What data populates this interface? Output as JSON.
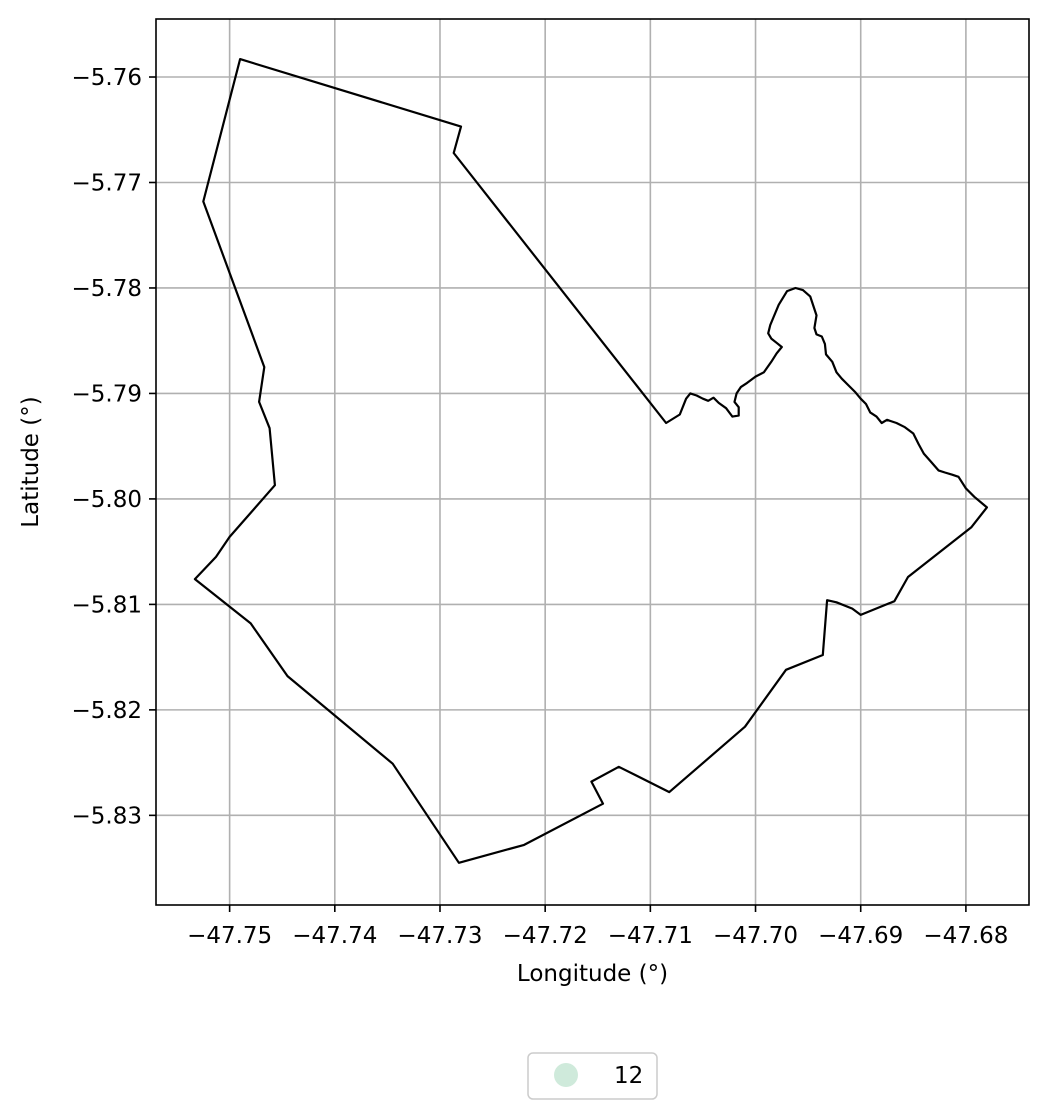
{
  "chart_data": {
    "type": "map",
    "title": "",
    "xlabel": "Longitude (°)",
    "ylabel": "Latitude (°)",
    "xlim": [
      -47.757,
      -47.674
    ],
    "ylim": [
      -5.8385,
      -5.7545
    ],
    "grid": true,
    "x_ticks": [
      -47.75,
      -47.74,
      -47.73,
      -47.72,
      -47.71,
      -47.7,
      -47.69,
      -47.68
    ],
    "x_tick_labels": [
      "−47.75",
      "−47.74",
      "−47.73",
      "−47.72",
      "−47.71",
      "−47.70",
      "−47.69",
      "−47.68"
    ],
    "y_ticks": [
      -5.76,
      -5.77,
      -5.78,
      -5.79,
      -5.8,
      -5.81,
      -5.82,
      -5.83
    ],
    "y_tick_labels": [
      "−5.76",
      "−5.77",
      "−5.78",
      "−5.79",
      "−5.80",
      "−5.81",
      "−5.82",
      "−5.83"
    ],
    "boundary": {
      "stroke_color": "#000000",
      "fill_color": "none",
      "coordinates": [
        [
          -47.749,
          -5.7583
        ],
        [
          -47.728,
          -5.7647
        ],
        [
          -47.7287,
          -5.7672
        ],
        [
          -47.7085,
          -5.7928
        ],
        [
          -47.7072,
          -5.792
        ],
        [
          -47.7066,
          -5.7905
        ],
        [
          -47.7062,
          -5.79
        ],
        [
          -47.7056,
          -5.7902
        ],
        [
          -47.705,
          -5.7905
        ],
        [
          -47.7045,
          -5.7907
        ],
        [
          -47.704,
          -5.7904
        ],
        [
          -47.7035,
          -5.7909
        ],
        [
          -47.7028,
          -5.7914
        ],
        [
          -47.7022,
          -5.7922
        ],
        [
          -47.7016,
          -5.7921
        ],
        [
          -47.7016,
          -5.7913
        ],
        [
          -47.702,
          -5.7908
        ],
        [
          -47.7018,
          -5.79
        ],
        [
          -47.7014,
          -5.7894
        ],
        [
          -47.7008,
          -5.789
        ],
        [
          -47.7,
          -5.7884
        ],
        [
          -47.6992,
          -5.788
        ],
        [
          -47.6985,
          -5.787
        ],
        [
          -47.698,
          -5.7862
        ],
        [
          -47.6975,
          -5.7856
        ],
        [
          -47.698,
          -5.7852
        ],
        [
          -47.6985,
          -5.7848
        ],
        [
          -47.6988,
          -5.7843
        ],
        [
          -47.6986,
          -5.7835
        ],
        [
          -47.6983,
          -5.7828
        ],
        [
          -47.6978,
          -5.7816
        ],
        [
          -47.697,
          -5.7803
        ],
        [
          -47.6962,
          -5.78
        ],
        [
          -47.6955,
          -5.7802
        ],
        [
          -47.6948,
          -5.7808
        ],
        [
          -47.6942,
          -5.7826
        ],
        [
          -47.6944,
          -5.7838
        ],
        [
          -47.6942,
          -5.7844
        ],
        [
          -47.6937,
          -5.7846
        ],
        [
          -47.6934,
          -5.7853
        ],
        [
          -47.6933,
          -5.7863
        ],
        [
          -47.6927,
          -5.787
        ],
        [
          -47.6923,
          -5.788
        ],
        [
          -47.6918,
          -5.7886
        ],
        [
          -47.6912,
          -5.7892
        ],
        [
          -47.6905,
          -5.7899
        ],
        [
          -47.69,
          -5.7905
        ],
        [
          -47.6895,
          -5.791
        ],
        [
          -47.6891,
          -5.7918
        ],
        [
          -47.6885,
          -5.7922
        ],
        [
          -47.688,
          -5.7928
        ],
        [
          -47.6875,
          -5.7925
        ],
        [
          -47.6866,
          -5.7928
        ],
        [
          -47.6858,
          -5.7932
        ],
        [
          -47.685,
          -5.7938
        ],
        [
          -47.6845,
          -5.7948
        ],
        [
          -47.684,
          -5.7957
        ],
        [
          -47.6833,
          -5.7965
        ],
        [
          -47.6826,
          -5.7973
        ],
        [
          -47.682,
          -5.7975
        ],
        [
          -47.6813,
          -5.7977
        ],
        [
          -47.6807,
          -5.7979
        ],
        [
          -47.68,
          -5.799
        ],
        [
          -47.6792,
          -5.7998
        ],
        [
          -47.678,
          -5.8008
        ],
        [
          -47.6795,
          -5.8027
        ],
        [
          -47.6855,
          -5.8074
        ],
        [
          -47.6868,
          -5.8097
        ],
        [
          -47.69,
          -5.811
        ],
        [
          -47.6908,
          -5.8104
        ],
        [
          -47.6923,
          -5.8098
        ],
        [
          -47.6932,
          -5.8096
        ],
        [
          -47.6936,
          -5.8148
        ],
        [
          -47.6971,
          -5.8162
        ],
        [
          -47.701,
          -5.8216
        ],
        [
          -47.7082,
          -5.8278
        ],
        [
          -47.713,
          -5.8254
        ],
        [
          -47.7156,
          -5.8268
        ],
        [
          -47.7145,
          -5.8289
        ],
        [
          -47.722,
          -5.8328
        ],
        [
          -47.7282,
          -5.8345
        ],
        [
          -47.7345,
          -5.8251
        ],
        [
          -47.7445,
          -5.8168
        ],
        [
          -47.748,
          -5.8118
        ],
        [
          -47.7533,
          -5.8076
        ],
        [
          -47.7513,
          -5.8055
        ],
        [
          -47.75,
          -5.8036
        ],
        [
          -47.7457,
          -5.7987
        ],
        [
          -47.7462,
          -5.7933
        ],
        [
          -47.7472,
          -5.7908
        ],
        [
          -47.7467,
          -5.7875
        ],
        [
          -47.7525,
          -5.7718
        ],
        [
          -47.749,
          -5.7583
        ]
      ]
    },
    "legend": {
      "placement": "bottom-center",
      "entries": [
        {
          "label": "12",
          "color": "#cfeadb",
          "marker": "circle"
        }
      ]
    }
  }
}
